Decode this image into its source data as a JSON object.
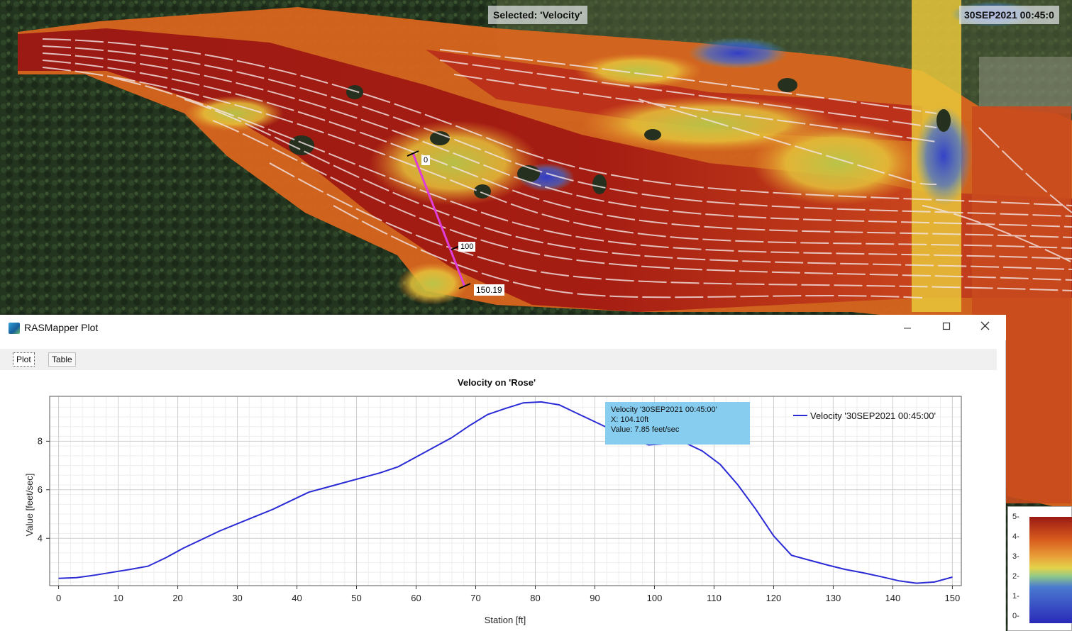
{
  "map": {
    "selected_label": "Selected: 'Velocity'",
    "time_label": "30SEP2021 00:45:0",
    "profile_line_labels": [
      "0",
      "100",
      "150.19"
    ],
    "colors": {
      "profile_line": "#e03cd8",
      "streamline": "#f3e6e6"
    }
  },
  "window": {
    "title": "RASMapper Plot",
    "minimize_icon": "minimize-icon",
    "maximize_icon": "maximize-icon",
    "close_icon": "close-icon"
  },
  "tabs": [
    {
      "label": "Plot",
      "active": true
    },
    {
      "label": "Table",
      "active": false
    }
  ],
  "tooltip": {
    "line1": "Velocity  '30SEP2021  00:45:00'",
    "line2": "X:  104.10ft",
    "line3": "Value:  7.85 feet/sec",
    "color": "#87cdf0"
  },
  "legend_scale": {
    "ticks": [
      "5",
      "4",
      "3",
      "2",
      "1",
      "0"
    ]
  },
  "chart_data": {
    "type": "line",
    "title": "Velocity on 'Rose'",
    "xlabel": "Station [ft]",
    "ylabel": "Value [feet/sec]",
    "xlim": [
      -1.5,
      151.5
    ],
    "ylim": [
      2.05,
      9.85
    ],
    "xticks": [
      0,
      10,
      20,
      30,
      40,
      50,
      60,
      70,
      80,
      90,
      100,
      110,
      120,
      130,
      140,
      150
    ],
    "yticks": [
      4,
      6,
      8
    ],
    "grid": true,
    "legend_position": "top-right",
    "series": [
      {
        "name": "Velocity '30SEP2021 00:45:00'",
        "color": "#2b2bd6",
        "x": [
          0,
          3,
          6,
          9,
          12,
          15,
          18,
          21,
          24,
          27,
          30,
          33,
          36,
          39,
          42,
          45,
          48,
          51,
          54,
          57,
          60,
          63,
          66,
          69,
          72,
          75,
          78,
          81,
          84,
          87,
          90,
          93,
          96,
          99,
          102,
          105,
          108,
          111,
          114,
          117,
          120,
          123,
          126,
          129,
          132,
          135,
          138,
          141,
          144,
          147,
          150
        ],
        "values": [
          2.35,
          2.38,
          2.48,
          2.6,
          2.72,
          2.85,
          3.2,
          3.6,
          3.95,
          4.3,
          4.6,
          4.9,
          5.2,
          5.55,
          5.9,
          6.1,
          6.3,
          6.5,
          6.7,
          6.95,
          7.35,
          7.75,
          8.15,
          8.65,
          9.1,
          9.35,
          9.58,
          9.62,
          9.5,
          9.15,
          8.8,
          8.45,
          8.1,
          7.85,
          7.9,
          7.95,
          7.6,
          7.05,
          6.2,
          5.2,
          4.1,
          3.3,
          3.1,
          2.9,
          2.72,
          2.58,
          2.42,
          2.25,
          2.15,
          2.2,
          2.4
        ]
      }
    ]
  }
}
